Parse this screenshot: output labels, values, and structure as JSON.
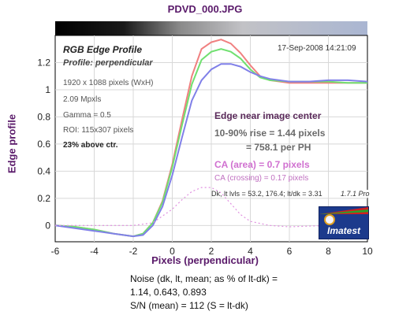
{
  "figure_title": "PDVD_000.JPG",
  "chart_title": "RGB Edge Profile",
  "chart_subtitle": "Profile: perpendicular",
  "date": "17-Sep-2008 14:21:09",
  "info": {
    "pixels": "1920 x 1088 pixels (WxH)",
    "mpxls": "2.09 Mpxls",
    "gamma": "Gamma = 0.5",
    "roi": "ROI: 115x307 pixels",
    "position": "23% above ctr."
  },
  "results": {
    "edge_title": "Edge near image center",
    "rise_line1": "10-90% rise = 1.44 pixels",
    "rise_line2": "= 758.1 per PH",
    "ca_area": "CA (area) = 0.7 pixels",
    "ca_crossing": "CA (crossing) = 0.17 pixels",
    "levels": "Dk, lt lvls = 53.2, 176.4;  lt/dk = 3.31"
  },
  "version": "1.7.1  Pro",
  "logo_text": "Imatest",
  "noise": {
    "line1": "Noise (dk, lt, mean; as % of lt-dk) =",
    "line2": "1.14,  0.643,  0.893",
    "line3": "S/N (mean) = 112  (S = lt-dk)"
  },
  "chart_data": {
    "type": "line",
    "xlabel": "Pixels (perpendicular)",
    "ylabel": "Edge profile",
    "xlim": [
      -6,
      10
    ],
    "ylim": [
      -0.12,
      1.4
    ],
    "xticks": [
      -6,
      -4,
      -2,
      0,
      2,
      4,
      6,
      8,
      10
    ],
    "yticks": [
      0,
      0.2,
      0.4,
      0.6,
      0.8,
      1,
      1.2
    ],
    "ytick_labels": [
      "0",
      "0.2",
      "0.4",
      "0.6",
      "0.8",
      "1",
      "1.2"
    ],
    "grid": true,
    "series": [
      {
        "color": "#f08080",
        "x": [
          -6,
          -5,
          -4,
          -3,
          -2,
          -1.5,
          -1,
          -0.5,
          0,
          0.5,
          1,
          1.5,
          2,
          2.5,
          3,
          3.5,
          4,
          4.5,
          5,
          6,
          7,
          8,
          9,
          10
        ],
        "y": [
          0.0,
          -0.01,
          -0.03,
          -0.06,
          -0.08,
          -0.06,
          0.02,
          0.18,
          0.45,
          0.78,
          1.1,
          1.3,
          1.35,
          1.37,
          1.34,
          1.27,
          1.18,
          1.1,
          1.07,
          1.05,
          1.05,
          1.05,
          1.05,
          1.05
        ]
      },
      {
        "color": "#70e070",
        "x": [
          -6,
          -5,
          -4,
          -3,
          -2,
          -1.5,
          -1,
          -0.5,
          0,
          0.5,
          1,
          1.5,
          2,
          2.5,
          3,
          3.5,
          4,
          4.5,
          5,
          6,
          7,
          8,
          9,
          10
        ],
        "y": [
          0.0,
          -0.01,
          -0.03,
          -0.06,
          -0.08,
          -0.06,
          0.02,
          0.17,
          0.43,
          0.74,
          1.04,
          1.22,
          1.28,
          1.3,
          1.28,
          1.23,
          1.15,
          1.09,
          1.07,
          1.06,
          1.06,
          1.06,
          1.05,
          1.05
        ]
      },
      {
        "color": "#8080e8",
        "x": [
          -6,
          -5,
          -4,
          -3,
          -2,
          -1.5,
          -1,
          -0.5,
          0,
          0.5,
          1,
          1.5,
          2,
          2.5,
          3,
          3.5,
          4,
          4.5,
          5,
          6,
          7,
          8,
          9,
          10
        ],
        "y": [
          0.0,
          -0.02,
          -0.04,
          -0.06,
          -0.08,
          -0.07,
          0.0,
          0.14,
          0.37,
          0.65,
          0.92,
          1.07,
          1.15,
          1.19,
          1.19,
          1.17,
          1.13,
          1.1,
          1.08,
          1.06,
          1.06,
          1.07,
          1.07,
          1.06
        ]
      },
      {
        "color": "#e090e0",
        "dashed": true,
        "x": [
          -6,
          -4,
          -2,
          -1,
          0,
          0.5,
          1,
          1.5,
          2,
          2.5,
          3,
          3.5,
          4,
          5,
          6,
          8,
          10
        ],
        "y": [
          0.0,
          0.0,
          0.0,
          0.02,
          0.12,
          0.19,
          0.25,
          0.28,
          0.28,
          0.24,
          0.16,
          0.08,
          0.03,
          0.0,
          -0.01,
          0.0,
          0.0
        ]
      }
    ]
  }
}
